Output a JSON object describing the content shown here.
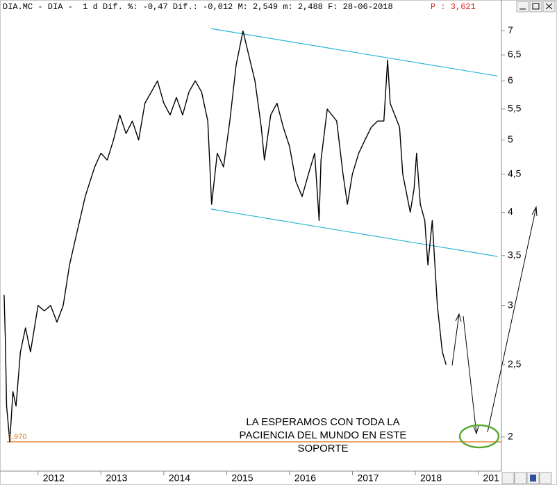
{
  "chart_data": {
    "type": "line",
    "header_text": "DIA.MC - DIA -  1 d Dif. %: -0,47 Dif.: -0,012 M: 2,549 m: 2,488 F: 28-06-2018",
    "header_price": "P : 3,621",
    "annotation": [
      "LA ESPERAMOS CON TODA LA",
      "PACIENCIA DEL MUNDO EN ESTE",
      "SOPORTE"
    ],
    "log_scale": true,
    "xlim": [
      2011.45,
      2019.37
    ],
    "ylim": [
      1.8,
      7.7
    ],
    "xticks": [
      2012,
      2013,
      2014,
      2015,
      2016,
      2017,
      2018,
      {
        "value": 2019,
        "label": "201"
      }
    ],
    "yticks": [
      2,
      {
        "value": 2.5,
        "label": "2,5"
      },
      3,
      {
        "value": 3.5,
        "label": "3,5"
      },
      4,
      {
        "value": 4.5,
        "label": "4,5"
      },
      5,
      {
        "value": 5.5,
        "label": "5,5"
      },
      6,
      {
        "value": 6.5,
        "label": "6,5"
      },
      7
    ],
    "support": {
      "value": 1.97,
      "label": "1,970",
      "color": "#e0781e"
    },
    "channel": {
      "color": "#2bb5d6",
      "lines": [
        {
          "x": [
            2014.75,
            2019.31
          ],
          "y": [
            7.05,
            6.09
          ]
        },
        {
          "x": [
            2014.75,
            2019.31
          ],
          "y": [
            4.04,
            3.49
          ]
        }
      ]
    },
    "series": [
      {
        "color": "#000000",
        "x": [
          2011.46,
          2011.48,
          2011.5,
          2011.55,
          2011.6,
          2011.65,
          2011.72,
          2011.8,
          2011.88,
          2012.0,
          2012.1,
          2012.2,
          2012.3,
          2012.4,
          2012.5,
          2012.6,
          2012.75,
          2012.9,
          2013.0,
          2013.1,
          2013.2,
          2013.3,
          2013.4,
          2013.5,
          2013.6,
          2013.7,
          2013.9,
          2014.0,
          2014.1,
          2014.2,
          2014.3,
          2014.4,
          2014.5,
          2014.6,
          2014.7,
          2014.76,
          2014.85,
          2014.95,
          2015.05,
          2015.15,
          2015.26,
          2015.35,
          2015.45,
          2015.55,
          2015.6,
          2015.7,
          2015.8,
          2015.9,
          2016.0,
          2016.1,
          2016.2,
          2016.3,
          2016.4,
          2016.47,
          2016.5,
          2016.6,
          2016.75,
          2016.85,
          2016.92,
          2017.0,
          2017.1,
          2017.2,
          2017.3,
          2017.4,
          2017.5,
          2017.56,
          2017.6,
          2017.75,
          2017.8,
          2017.92,
          2017.98,
          2018.02,
          2018.08,
          2018.15,
          2018.2,
          2018.27,
          2018.35,
          2018.43,
          2018.49
        ],
        "values": [
          3.1,
          2.7,
          2.2,
          1.97,
          2.3,
          2.2,
          2.6,
          2.8,
          2.6,
          3.0,
          2.95,
          3.0,
          2.85,
          3.0,
          3.4,
          3.7,
          4.2,
          4.6,
          4.8,
          4.7,
          5.0,
          5.4,
          5.1,
          5.3,
          5.0,
          5.6,
          6.0,
          5.6,
          5.4,
          5.7,
          5.4,
          5.8,
          6.0,
          5.8,
          5.3,
          4.1,
          4.8,
          4.6,
          5.3,
          6.3,
          7.0,
          6.5,
          6.0,
          5.2,
          4.7,
          5.4,
          5.6,
          5.2,
          4.9,
          4.4,
          4.2,
          4.5,
          4.8,
          3.9,
          4.7,
          5.5,
          5.3,
          4.5,
          4.1,
          4.5,
          4.8,
          5.0,
          5.2,
          5.3,
          5.3,
          6.4,
          5.6,
          5.2,
          4.5,
          4.0,
          4.3,
          4.8,
          4.1,
          3.9,
          3.4,
          3.9,
          3.0,
          2.6,
          2.5
        ]
      }
    ]
  }
}
